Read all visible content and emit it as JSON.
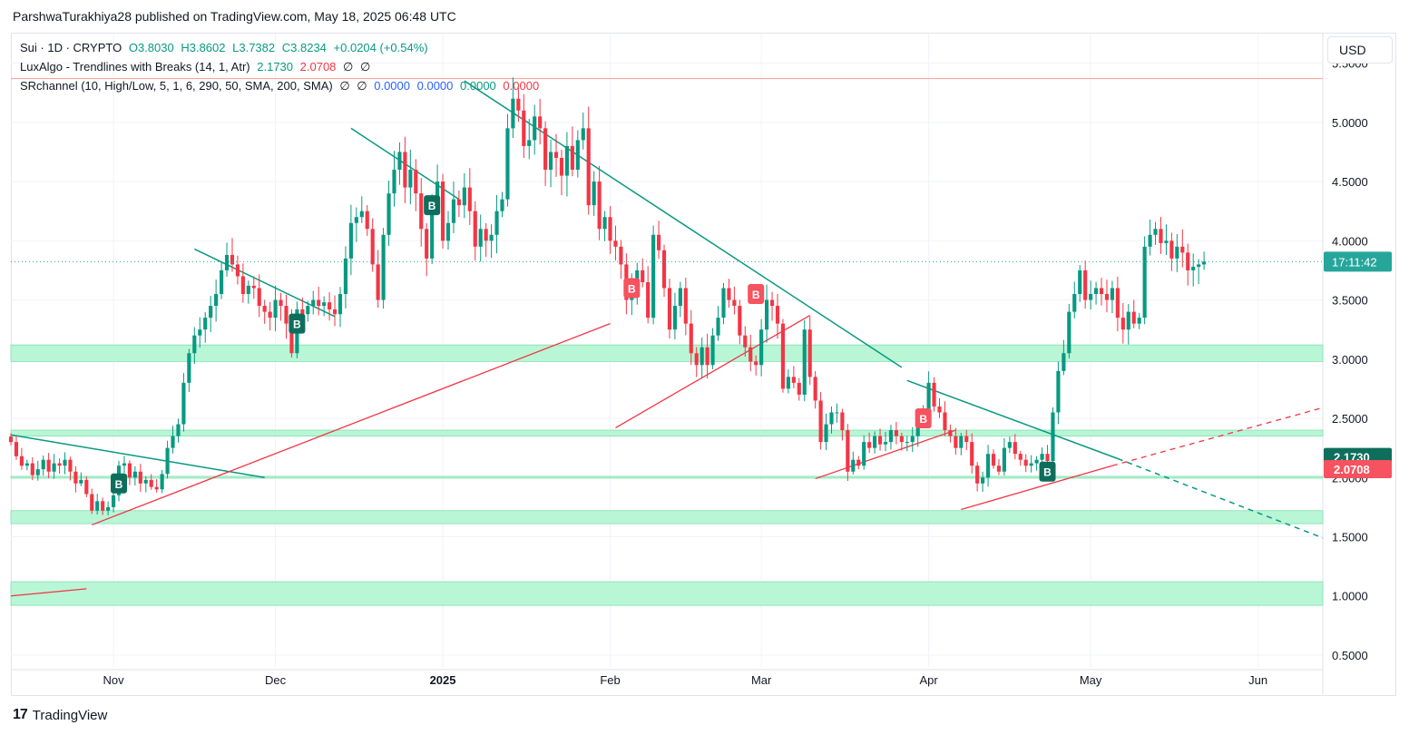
{
  "header": {
    "credit": "ParshwaTurakhiya28 published on TradingView.com, May 18, 2025 06:48 UTC"
  },
  "legend": {
    "symbol": "Sui · 1D · CRYPTO",
    "open": "O3.8030",
    "high": "H3.8602",
    "low": "L3.7382",
    "close": "C3.8234",
    "change": "+0.0204 (+0.54%)",
    "indicator1_name": "LuxAlgo - Trendlines with Breaks (14, 1, Atr)",
    "indicator1_v1": "2.1730",
    "indicator1_v2": "2.0708",
    "indicator1_v3": "∅",
    "indicator1_v4": "∅",
    "indicator2_name": "SRchannel (10, High/Low, 5, 1, 6, 290, 50, SMA, 200, SMA)",
    "indicator2_v1": "∅",
    "indicator2_v2": "∅",
    "indicator2_v3": "0.0000",
    "indicator2_v4": "0.0000",
    "indicator2_v5": "0.0000",
    "indicator2_v6": "0.0000"
  },
  "currency": "USD",
  "footer": {
    "brand": "TradingView",
    "mark": "17"
  },
  "colors": {
    "up": "#089981",
    "down": "#f23645",
    "zone": "#b9f6d6",
    "zone_border": "#7fe0ae",
    "trend_teal": "#089981",
    "trend_red": "#f23645",
    "grid": "#f0f3fa",
    "label_teal": "#0e6e5c",
    "label_red": "#f7525f",
    "price_line": "#26a69a"
  },
  "chart_data": {
    "type": "candlestick",
    "symbol": "SUI/USD",
    "timeframe": "1D",
    "ylim": [
      0.4,
      5.75
    ],
    "y_ticks": [
      "5.5000",
      "5.0000",
      "4.5000",
      "4.0000",
      "3.5000",
      "3.0000",
      "2.5000",
      "2.0000",
      "1.5000",
      "1.0000",
      "0.5000"
    ],
    "x_ticks": [
      {
        "label": "Nov",
        "date": "2024-11-01"
      },
      {
        "label": "Dec",
        "date": "2024-12-01"
      },
      {
        "label": "2025",
        "date": "2025-01-01"
      },
      {
        "label": "Feb",
        "date": "2025-02-01"
      },
      {
        "label": "Mar",
        "date": "2025-03-01"
      },
      {
        "label": "Apr",
        "date": "2025-04-01"
      },
      {
        "label": "May",
        "date": "2025-05-01"
      },
      {
        "label": "Jun",
        "date": "2025-06-01"
      }
    ],
    "x_range": [
      "2024-10-13",
      "2025-06-13"
    ],
    "last_price": {
      "value": 3.8234,
      "countdown": "17:11:42"
    },
    "price_labels": [
      {
        "value": 2.173,
        "text": "2.1730",
        "color": "#0e6e5c"
      },
      {
        "value": 2.0708,
        "text": "2.0708",
        "color": "#f7525f"
      }
    ],
    "resistance_line": 5.37,
    "sr_zones": [
      {
        "low": 2.98,
        "high": 3.12
      },
      {
        "low": 2.35,
        "high": 2.4
      },
      {
        "low": 2.0,
        "high": 2.01
      },
      {
        "low": 1.61,
        "high": 1.72
      },
      {
        "low": 0.92,
        "high": 1.12
      }
    ],
    "trendlines_down": [
      {
        "x1": "2024-10-13",
        "y1": 2.36,
        "x2": "2024-11-29",
        "y2": 2.0
      },
      {
        "x1": "2024-11-16",
        "y1": 3.93,
        "x2": "2024-12-12",
        "y2": 3.36
      },
      {
        "x1": "2024-12-15",
        "y1": 4.95,
        "x2": "2025-01-04",
        "y2": 4.35
      },
      {
        "x1": "2025-01-05",
        "y1": 5.35,
        "x2": "2025-03-27",
        "y2": 2.93
      },
      {
        "x1": "2025-03-28",
        "y1": 2.82,
        "x2": "2025-05-06",
        "y2": 2.16
      },
      {
        "x1": "2025-05-06",
        "y1": 2.16,
        "x2": "2025-06-13",
        "y2": 1.49,
        "dashed": true
      }
    ],
    "trendlines_up": [
      {
        "x1": "2024-10-13",
        "y1": 1.0,
        "x2": "2024-10-27",
        "y2": 1.06
      },
      {
        "x1": "2024-10-28",
        "y1": 1.6,
        "x2": "2025-02-01",
        "y2": 3.3
      },
      {
        "x1": "2025-02-02",
        "y1": 2.42,
        "x2": "2025-03-10",
        "y2": 3.37
      },
      {
        "x1": "2025-03-11",
        "y1": 1.99,
        "x2": "2025-04-06",
        "y2": 2.4
      },
      {
        "x1": "2025-04-07",
        "y1": 1.73,
        "x2": "2025-05-05",
        "y2": 2.1
      },
      {
        "x1": "2025-05-05",
        "y1": 2.1,
        "x2": "2025-06-13",
        "y2": 2.59,
        "dashed": true
      }
    ],
    "signals": [
      {
        "date": "2024-11-02",
        "type": "B",
        "side": "buy",
        "price": 1.95
      },
      {
        "date": "2024-12-05",
        "type": "B",
        "side": "buy",
        "price": 3.3
      },
      {
        "date": "2024-12-30",
        "type": "B",
        "side": "buy",
        "price": 4.3
      },
      {
        "date": "2025-02-05",
        "type": "B",
        "side": "sell",
        "price": 3.6
      },
      {
        "date": "2025-02-28",
        "type": "B",
        "side": "sell",
        "price": 3.55
      },
      {
        "date": "2025-03-31",
        "type": "B",
        "side": "sell",
        "price": 2.5
      },
      {
        "date": "2025-04-23",
        "type": "B",
        "side": "buy",
        "price": 2.05
      }
    ],
    "candles_close": [
      2.3,
      2.18,
      2.1,
      2.12,
      2.02,
      2.07,
      2.15,
      2.05,
      2.12,
      2.1,
      2.15,
      2.05,
      1.95,
      1.98,
      1.86,
      1.72,
      1.8,
      1.72,
      1.75,
      1.85,
      2.1,
      2.12,
      2.0,
      2.05,
      1.95,
      1.98,
      1.92,
      1.9,
      2.03,
      2.25,
      2.35,
      2.45,
      2.8,
      3.05,
      3.2,
      3.25,
      3.35,
      3.45,
      3.55,
      3.75,
      3.88,
      3.8,
      3.7,
      3.55,
      3.62,
      3.6,
      3.45,
      3.4,
      3.35,
      3.5,
      3.45,
      3.3,
      3.05,
      3.42,
      3.38,
      3.45,
      3.5,
      3.45,
      3.48,
      3.42,
      3.38,
      3.55,
      3.85,
      4.15,
      4.2,
      4.25,
      4.1,
      3.8,
      3.5,
      4.05,
      4.4,
      4.6,
      4.75,
      4.45,
      4.6,
      4.4,
      4.1,
      3.85,
      4.3,
      4.5,
      4.0,
      4.15,
      4.35,
      4.3,
      4.45,
      4.25,
      3.95,
      4.1,
      4.0,
      4.05,
      4.25,
      4.35,
      4.95,
      5.2,
      5.1,
      4.8,
      4.85,
      5.05,
      4.95,
      4.6,
      4.75,
      4.7,
      4.55,
      4.8,
      4.6,
      4.85,
      4.95,
      4.3,
      4.5,
      4.1,
      4.2,
      4.0,
      3.95,
      3.8,
      3.5,
      3.6,
      3.75,
      3.65,
      3.35,
      4.05,
      3.92,
      3.6,
      3.25,
      3.45,
      3.6,
      3.3,
      3.05,
      2.95,
      3.1,
      2.95,
      3.2,
      3.35,
      3.6,
      3.5,
      3.45,
      3.2,
      3.1,
      2.98,
      2.95,
      3.25,
      3.5,
      3.45,
      3.3,
      2.75,
      2.85,
      2.8,
      2.7,
      3.25,
      2.85,
      2.65,
      2.3,
      2.45,
      2.55,
      2.55,
      2.4,
      2.05,
      2.15,
      2.1,
      2.3,
      2.25,
      2.35,
      2.28,
      2.3,
      2.4,
      2.35,
      2.3,
      2.3,
      2.35,
      2.45,
      2.55,
      2.8,
      2.6,
      2.55,
      2.4,
      2.35,
      2.25,
      2.35,
      2.3,
      2.1,
      1.95,
      2.0,
      2.2,
      2.1,
      2.05,
      2.25,
      2.3,
      2.2,
      2.15,
      2.1,
      2.12,
      2.15,
      2.2,
      2.14,
      2.55,
      2.9,
      3.05,
      3.4,
      3.55,
      3.75,
      3.5,
      3.55,
      3.6,
      3.55,
      3.5,
      3.6,
      3.35,
      3.25,
      3.4,
      3.3,
      3.35,
      3.95,
      4.05,
      4.1,
      3.98,
      4.0,
      3.85,
      3.95,
      3.9,
      3.75,
      3.78,
      3.8,
      3.8234
    ]
  }
}
